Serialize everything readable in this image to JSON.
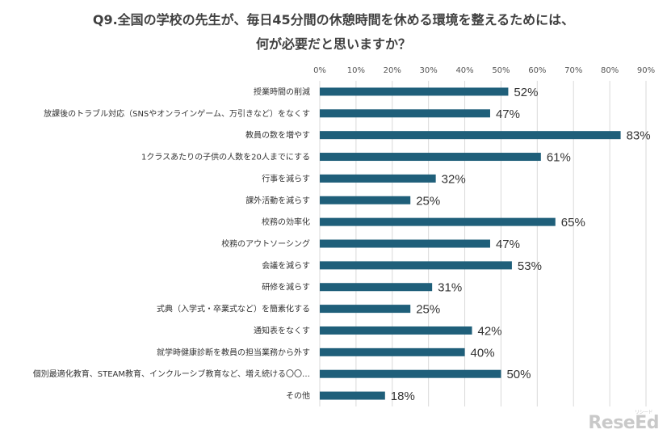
{
  "title_line1": "Q9.全国の学校の先生が、毎日45分間の休憩時間を休める環境を整えるためには、",
  "title_line2": "何が必要だと思いますか？",
  "logo": {
    "text": "ReseEd",
    "sub": "リシード"
  },
  "colors": {
    "bar": "#1f5f7a",
    "grid": "#d9d9d9"
  },
  "chart_data": {
    "type": "bar",
    "orientation": "horizontal",
    "title": "Q9.全国の学校の先生が、毎日45分間の休憩時間を休める環境を整えるためには、何が必要だと思いますか？",
    "xlim": [
      0,
      90
    ],
    "x_ticks": [
      "0%",
      "10%",
      "20%",
      "30%",
      "40%",
      "50%",
      "60%",
      "70%",
      "80%",
      "90%"
    ],
    "grid": true,
    "categories": [
      "授業時間の削減",
      "放課後のトラブル対応（SNSやオンラインゲーム、万引きなど）をなくす",
      "教員の数を増やす",
      "1クラスあたりの子供の人数を20人までにする",
      "行事を減らす",
      "課外活動を減らす",
      "校務の効率化",
      "校務のアウトソーシング",
      "会議を減らす",
      "研修を減らす",
      "式典（入学式・卒業式など）を簡素化する",
      "通知表をなくす",
      "就学時健康診断を教員の担当業務から外す",
      "個別最適化教育、STEAM教育、インクルーシブ教育など、増え続ける〇〇…",
      "その他"
    ],
    "values": [
      52,
      47,
      83,
      61,
      32,
      25,
      65,
      47,
      53,
      31,
      25,
      42,
      40,
      50,
      18
    ],
    "data_labels": [
      "52%",
      "47%",
      "83%",
      "61%",
      "32%",
      "25%",
      "65%",
      "47%",
      "53%",
      "31%",
      "25%",
      "42%",
      "40%",
      "50%",
      "18%"
    ]
  }
}
